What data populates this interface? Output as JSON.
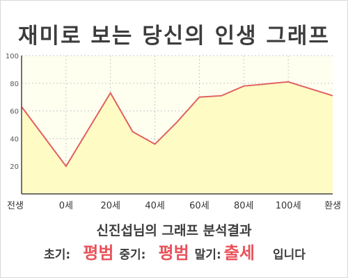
{
  "title": "재미로 보는 당신의 인생 그래프",
  "result": {
    "heading": "신진섭님의 그래프 분석결과",
    "early_label": "초기:",
    "early_value": "평범",
    "middle_label": "중기:",
    "middle_value": "평범",
    "late_label": "말기:",
    "late_value": "출세",
    "ending": "입니다"
  },
  "colors": {
    "line": "#e06060",
    "fill": "#fffbc4",
    "plot_background": "#fffff0",
    "highlight": "#e8525a"
  },
  "chart_data": {
    "type": "area",
    "x_tick_labels": [
      "전생",
      "0세",
      "20세",
      "40세",
      "60세",
      "80세",
      "100세",
      "환생"
    ],
    "y_ticks": [
      20,
      40,
      60,
      80,
      100
    ],
    "ylim": [
      0,
      100
    ],
    "grid": true,
    "series": [
      {
        "points": [
          {
            "x": -20,
            "y": 63
          },
          {
            "x": 0,
            "y": 20
          },
          {
            "x": 20,
            "y": 73
          },
          {
            "x": 30,
            "y": 45
          },
          {
            "x": 40,
            "y": 36
          },
          {
            "x": 50,
            "y": 52
          },
          {
            "x": 60,
            "y": 70
          },
          {
            "x": 70,
            "y": 71
          },
          {
            "x": 80,
            "y": 78
          },
          {
            "x": 100,
            "y": 81
          },
          {
            "x": 120,
            "y": 71
          }
        ]
      }
    ]
  }
}
